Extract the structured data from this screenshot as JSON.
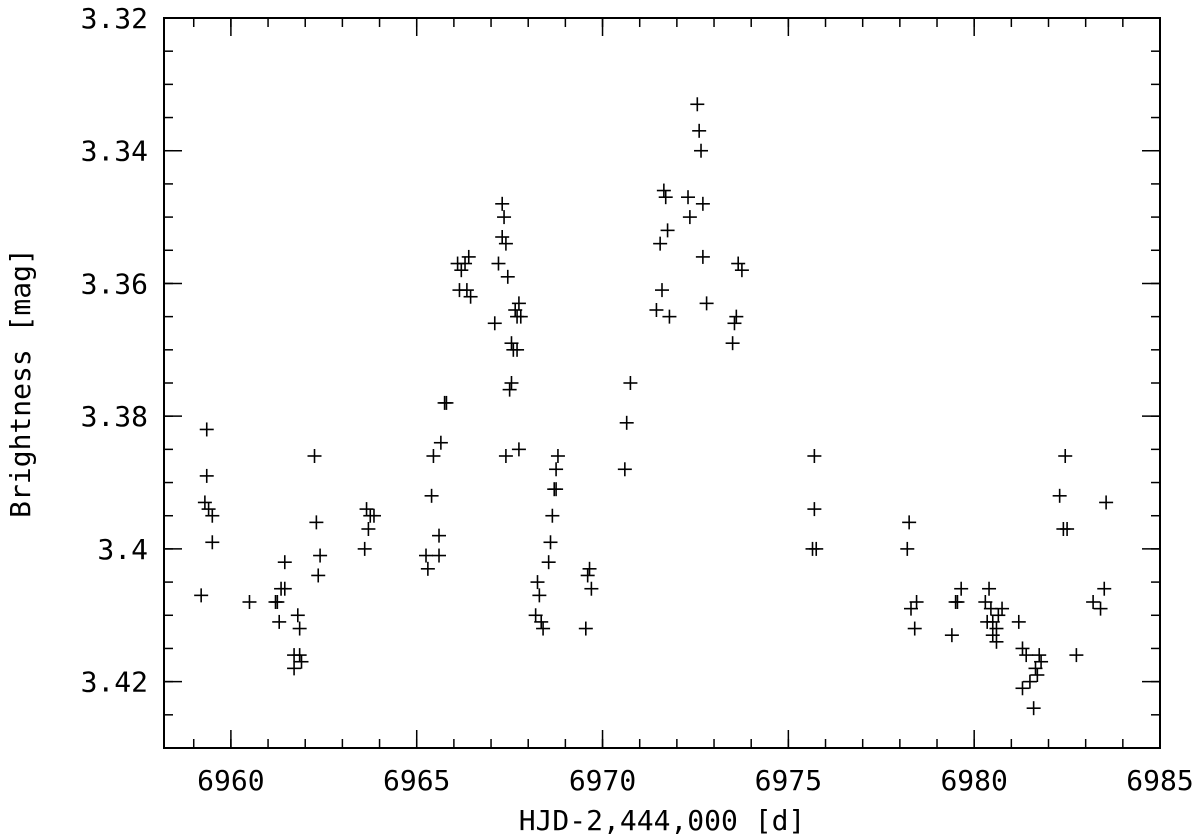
{
  "chart_data": {
    "type": "scatter",
    "marker": "plus",
    "marker_color": "#000000",
    "title": "",
    "xlabel": "HJD-2,444,000 [d]",
    "ylabel": "Brightness [mag]",
    "xlim": [
      6958.2,
      6985.0
    ],
    "ylim": [
      3.32,
      3.43
    ],
    "y_inverted": true,
    "grid": false,
    "x_ticks": [
      {
        "value": 6960,
        "label": "6960"
      },
      {
        "value": 6965,
        "label": "6965"
      },
      {
        "value": 6970,
        "label": "6970"
      },
      {
        "value": 6975,
        "label": "6975"
      },
      {
        "value": 6980,
        "label": "6980"
      },
      {
        "value": 6985,
        "label": "6985"
      }
    ],
    "y_ticks": [
      {
        "value": 3.32,
        "label": "3.32"
      },
      {
        "value": 3.34,
        "label": "3.34"
      },
      {
        "value": 3.36,
        "label": "3.36"
      },
      {
        "value": 3.38,
        "label": "3.38"
      },
      {
        "value": 3.4,
        "label": "3.4"
      },
      {
        "value": 3.42,
        "label": "3.42"
      }
    ],
    "x_minor_step": 1,
    "y_minor_step": 0.005,
    "series": [
      {
        "points": [
          [
            6959.2,
            3.407
          ],
          [
            6959.3,
            3.393
          ],
          [
            6959.35,
            3.389
          ],
          [
            6959.35,
            3.382
          ],
          [
            6959.4,
            3.394
          ],
          [
            6959.5,
            3.395
          ],
          [
            6959.5,
            3.399
          ],
          [
            6960.5,
            3.408
          ],
          [
            6961.2,
            3.408
          ],
          [
            6961.25,
            3.408
          ],
          [
            6961.3,
            3.411
          ],
          [
            6961.35,
            3.406
          ],
          [
            6961.45,
            3.406
          ],
          [
            6961.45,
            3.402
          ],
          [
            6961.7,
            3.416
          ],
          [
            6961.7,
            3.418
          ],
          [
            6961.8,
            3.41
          ],
          [
            6961.85,
            3.412
          ],
          [
            6961.85,
            3.416
          ],
          [
            6961.9,
            3.417
          ],
          [
            6962.25,
            3.386
          ],
          [
            6962.3,
            3.396
          ],
          [
            6962.35,
            3.404
          ],
          [
            6962.4,
            3.401
          ],
          [
            6963.6,
            3.4
          ],
          [
            6963.65,
            3.394
          ],
          [
            6963.7,
            3.397
          ],
          [
            6963.75,
            3.395
          ],
          [
            6963.85,
            3.395
          ],
          [
            6965.25,
            3.401
          ],
          [
            6965.3,
            3.403
          ],
          [
            6965.4,
            3.392
          ],
          [
            6965.45,
            3.386
          ],
          [
            6965.6,
            3.398
          ],
          [
            6965.6,
            3.401
          ],
          [
            6965.65,
            3.384
          ],
          [
            6965.75,
            3.378
          ],
          [
            6965.8,
            3.378
          ],
          [
            6966.1,
            3.357
          ],
          [
            6966.15,
            3.361
          ],
          [
            6966.2,
            3.358
          ],
          [
            6966.3,
            3.357
          ],
          [
            6966.35,
            3.361
          ],
          [
            6966.4,
            3.356
          ],
          [
            6966.45,
            3.362
          ],
          [
            6967.1,
            3.366
          ],
          [
            6967.2,
            3.357
          ],
          [
            6967.3,
            3.348
          ],
          [
            6967.3,
            3.353
          ],
          [
            6967.35,
            3.35
          ],
          [
            6967.4,
            3.354
          ],
          [
            6967.4,
            3.386
          ],
          [
            6967.45,
            3.359
          ],
          [
            6967.5,
            3.376
          ],
          [
            6967.55,
            3.375
          ],
          [
            6967.55,
            3.369
          ],
          [
            6967.6,
            3.37
          ],
          [
            6967.65,
            3.364
          ],
          [
            6967.7,
            3.365
          ],
          [
            6967.7,
            3.37
          ],
          [
            6967.75,
            3.363
          ],
          [
            6967.75,
            3.385
          ],
          [
            6967.8,
            3.365
          ],
          [
            6968.2,
            3.41
          ],
          [
            6968.25,
            3.405
          ],
          [
            6968.3,
            3.407
          ],
          [
            6968.35,
            3.411
          ],
          [
            6968.4,
            3.412
          ],
          [
            6968.55,
            3.402
          ],
          [
            6968.6,
            3.399
          ],
          [
            6968.65,
            3.395
          ],
          [
            6968.7,
            3.391
          ],
          [
            6968.75,
            3.388
          ],
          [
            6968.75,
            3.391
          ],
          [
            6968.8,
            3.386
          ],
          [
            6969.55,
            3.412
          ],
          [
            6969.6,
            3.404
          ],
          [
            6969.65,
            3.403
          ],
          [
            6969.7,
            3.406
          ],
          [
            6970.6,
            3.388
          ],
          [
            6970.65,
            3.381
          ],
          [
            6970.75,
            3.375
          ],
          [
            6971.45,
            3.364
          ],
          [
            6971.55,
            3.354
          ],
          [
            6971.6,
            3.361
          ],
          [
            6971.65,
            3.346
          ],
          [
            6971.7,
            3.347
          ],
          [
            6971.75,
            3.352
          ],
          [
            6971.8,
            3.365
          ],
          [
            6972.3,
            3.347
          ],
          [
            6972.35,
            3.35
          ],
          [
            6972.55,
            3.333
          ],
          [
            6972.6,
            3.337
          ],
          [
            6972.65,
            3.34
          ],
          [
            6972.7,
            3.348
          ],
          [
            6972.7,
            3.356
          ],
          [
            6972.8,
            3.363
          ],
          [
            6973.5,
            3.369
          ],
          [
            6973.55,
            3.366
          ],
          [
            6973.6,
            3.365
          ],
          [
            6973.65,
            3.357
          ],
          [
            6973.75,
            3.358
          ],
          [
            6975.65,
            3.4
          ],
          [
            6975.7,
            3.394
          ],
          [
            6975.7,
            3.386
          ],
          [
            6975.75,
            3.4
          ],
          [
            6978.2,
            3.4
          ],
          [
            6978.25,
            3.396
          ],
          [
            6978.3,
            3.409
          ],
          [
            6978.4,
            3.412
          ],
          [
            6978.45,
            3.408
          ],
          [
            6979.4,
            3.413
          ],
          [
            6979.5,
            3.408
          ],
          [
            6979.55,
            3.408
          ],
          [
            6979.65,
            3.406
          ],
          [
            6980.3,
            3.408
          ],
          [
            6980.35,
            3.411
          ],
          [
            6980.4,
            3.406
          ],
          [
            6980.45,
            3.409
          ],
          [
            6980.5,
            3.413
          ],
          [
            6980.5,
            3.411
          ],
          [
            6980.6,
            3.412
          ],
          [
            6980.6,
            3.414
          ],
          [
            6980.65,
            3.41
          ],
          [
            6980.75,
            3.409
          ],
          [
            6981.2,
            3.411
          ],
          [
            6981.3,
            3.415
          ],
          [
            6981.3,
            3.421
          ],
          [
            6981.4,
            3.416
          ],
          [
            6981.5,
            3.42
          ],
          [
            6981.6,
            3.424
          ],
          [
            6981.65,
            3.418
          ],
          [
            6981.7,
            3.419
          ],
          [
            6981.75,
            3.416
          ],
          [
            6981.8,
            3.417
          ],
          [
            6982.3,
            3.392
          ],
          [
            6982.4,
            3.397
          ],
          [
            6982.45,
            3.386
          ],
          [
            6982.5,
            3.397
          ],
          [
            6982.75,
            3.416
          ],
          [
            6983.2,
            3.408
          ],
          [
            6983.4,
            3.409
          ],
          [
            6983.5,
            3.406
          ],
          [
            6983.55,
            3.393
          ]
        ]
      }
    ]
  }
}
